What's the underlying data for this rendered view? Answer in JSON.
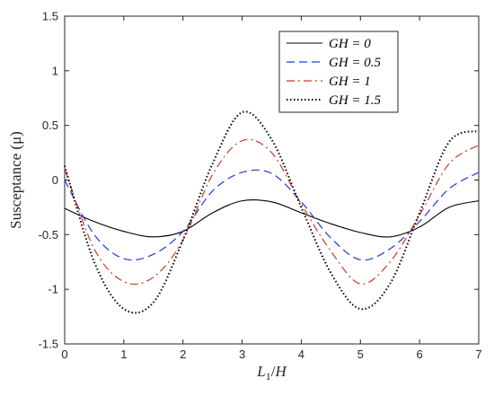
{
  "chart_data": {
    "type": "line",
    "xlabel": "L_1/H",
    "ylabel": "Susceptance (μ)",
    "xlim": [
      0,
      7
    ],
    "ylim": [
      -1.5,
      1.5
    ],
    "xticks": [
      "0",
      "1",
      "2",
      "3",
      "4",
      "5",
      "6",
      "7"
    ],
    "yticks": [
      "-1.5",
      "-1",
      "-0.5",
      "0",
      "0.5",
      "1",
      "1.5"
    ],
    "grid": false,
    "legend_position": "top-right",
    "x": [
      0,
      0.5,
      1.0,
      1.5,
      2.0,
      2.5,
      3.0,
      3.5,
      4.0,
      4.5,
      5.0,
      5.5,
      6.0,
      6.5,
      7.0
    ],
    "series": [
      {
        "name": "GH = 0",
        "color": "#000000",
        "dash": "solid",
        "values": [
          -0.26,
          -0.38,
          -0.47,
          -0.52,
          -0.47,
          -0.3,
          -0.19,
          -0.2,
          -0.3,
          -0.4,
          -0.48,
          -0.52,
          -0.43,
          -0.25,
          -0.19
        ]
      },
      {
        "name": "GH = 0.5",
        "color": "#1f3bd6",
        "dash": "dashed",
        "values": [
          0.0,
          -0.5,
          -0.72,
          -0.68,
          -0.47,
          -0.1,
          0.07,
          0.06,
          -0.2,
          -0.53,
          -0.73,
          -0.63,
          -0.38,
          -0.08,
          0.07
        ]
      },
      {
        "name": "GH = 1",
        "color": "#d03a1c",
        "dash": "dashdot",
        "values": [
          0.1,
          -0.63,
          -0.93,
          -0.89,
          -0.55,
          0.05,
          0.36,
          0.25,
          -0.22,
          -0.65,
          -0.95,
          -0.75,
          -0.32,
          0.15,
          0.32
        ]
      },
      {
        "name": "GH = 1.5",
        "color": "#000000",
        "dash": "dotted",
        "values": [
          0.13,
          -0.75,
          -1.18,
          -1.12,
          -0.55,
          0.15,
          0.62,
          0.37,
          -0.25,
          -0.85,
          -1.18,
          -0.95,
          -0.3,
          0.35,
          0.45
        ]
      }
    ]
  }
}
